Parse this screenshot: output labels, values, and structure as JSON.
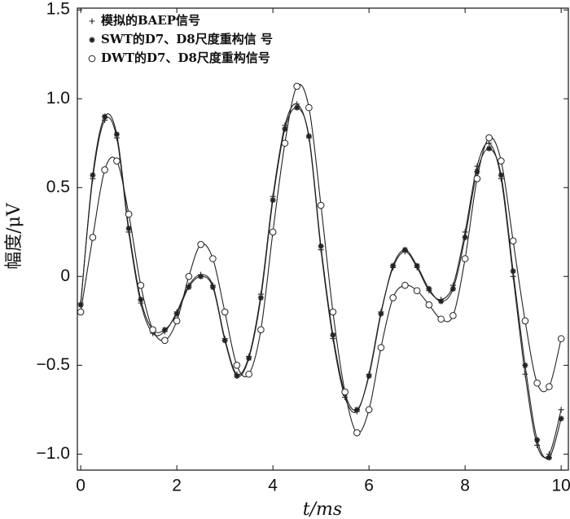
{
  "chart_data": {
    "type": "line",
    "xlabel": "t/ms",
    "ylabel": "幅度/μV",
    "x": [
      0,
      0.25,
      0.5,
      0.75,
      1,
      1.25,
      1.5,
      1.75,
      2,
      2.25,
      2.5,
      2.75,
      3,
      3.25,
      3.5,
      3.75,
      4,
      4.25,
      4.5,
      4.75,
      5,
      5.25,
      5.5,
      5.75,
      6,
      6.25,
      6.5,
      6.75,
      7,
      7.25,
      7.5,
      7.75,
      8,
      8.25,
      8.5,
      8.75,
      9,
      9.25,
      9.5,
      9.75,
      10
    ],
    "series": [
      {
        "name": "模拟的BAEP信号",
        "color": "#222222",
        "marker": "plus",
        "values": [
          -0.15,
          0.55,
          0.88,
          0.78,
          0.25,
          -0.15,
          -0.32,
          -0.31,
          -0.2,
          -0.05,
          0.01,
          -0.05,
          -0.35,
          -0.55,
          -0.45,
          -0.1,
          0.45,
          0.85,
          0.97,
          0.78,
          0.15,
          -0.35,
          -0.68,
          -0.76,
          -0.55,
          -0.2,
          0.05,
          0.14,
          0.05,
          -0.08,
          -0.13,
          -0.05,
          0.25,
          0.62,
          0.75,
          0.55,
          0.0,
          -0.55,
          -0.95,
          -1.0,
          -0.75
        ]
      },
      {
        "name": "SWT的D7、D8尺度重构信 号",
        "color": "#222222",
        "marker": "star",
        "values": [
          -0.16,
          0.57,
          0.9,
          0.8,
          0.27,
          -0.13,
          -0.3,
          -0.3,
          -0.21,
          -0.06,
          0.0,
          -0.06,
          -0.36,
          -0.56,
          -0.46,
          -0.12,
          0.43,
          0.83,
          0.95,
          0.79,
          0.17,
          -0.33,
          -0.66,
          -0.75,
          -0.56,
          -0.21,
          0.06,
          0.15,
          0.06,
          -0.07,
          -0.14,
          -0.07,
          0.22,
          0.59,
          0.72,
          0.57,
          0.03,
          -0.5,
          -0.92,
          -1.02,
          -0.8
        ]
      },
      {
        "name": "DWT的D7、D8尺度重构信号",
        "color": "#222222",
        "marker": "circle",
        "values": [
          -0.2,
          0.22,
          0.6,
          0.65,
          0.35,
          -0.05,
          -0.3,
          -0.36,
          -0.25,
          0.0,
          0.18,
          0.1,
          -0.2,
          -0.5,
          -0.55,
          -0.3,
          0.25,
          0.75,
          1.07,
          0.95,
          0.4,
          -0.2,
          -0.65,
          -0.88,
          -0.75,
          -0.4,
          -0.12,
          -0.05,
          -0.08,
          -0.16,
          -0.24,
          -0.22,
          0.1,
          0.55,
          0.78,
          0.65,
          0.2,
          -0.25,
          -0.6,
          -0.62,
          -0.35
        ]
      }
    ],
    "xlim": [
      -0.07,
      10.15
    ],
    "ylim": [
      -1.09,
      1.51
    ],
    "xticks": [
      0,
      2,
      4,
      6,
      8,
      10
    ],
    "yticks": [
      {
        "value": 1.5,
        "label": "1.5"
      },
      {
        "value": 1.0,
        "label": "1.0"
      },
      {
        "value": 0.5,
        "label": "0.5"
      },
      0,
      {
        "value": -0.5,
        "label": "−0.5"
      },
      {
        "value": -1.0,
        "label": "−1.0"
      }
    ],
    "legend": "upper left",
    "grid": false
  }
}
